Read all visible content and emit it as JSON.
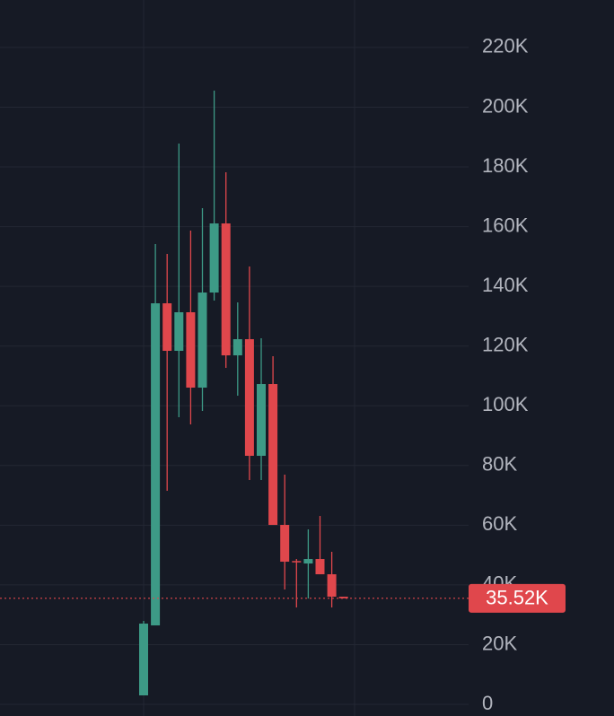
{
  "chart_data": {
    "type": "candlestick",
    "categories": [
      null,
      null,
      null,
      null,
      null,
      null,
      null,
      null,
      null,
      null,
      null,
      null,
      null,
      null,
      null,
      null,
      null,
      null
    ],
    "open": [
      3005,
      26444,
      134320,
      118400,
      131320,
      106080,
      137930,
      161070,
      116890,
      122300,
      83240,
      107280,
      60100,
      48000,
      47180,
      48680,
      43570,
      36060
    ],
    "high": [
      27950,
      154150,
      150850,
      187810,
      158660,
      166180,
      205540,
      178200,
      134620,
      146640,
      122600,
      116590,
      76930,
      48680,
      58600,
      63100,
      51090,
      36060
    ],
    "low": [
      3005,
      26444,
      71520,
      96160,
      93760,
      98260,
      135230,
      112690,
      103370,
      75130,
      75130,
      60100,
      38460,
      32450,
      35460,
      43570,
      32450,
      35520
    ],
    "close": [
      27045,
      134320,
      118400,
      131320,
      106080,
      137930,
      161070,
      116890,
      122300,
      83240,
      107280,
      60100,
      47780,
      47780,
      48680,
      43570,
      36060,
      35520
    ],
    "up_color": "#3d9a86",
    "down_color": "#e0474c",
    "ylim": [
      -3900,
      235900
    ],
    "yticks": [
      0,
      {
        "value": 20000,
        "label": "20K"
      },
      {
        "value": 40000,
        "label": "40K"
      },
      {
        "value": 60000,
        "label": "60K"
      },
      {
        "value": 80000,
        "label": "80K"
      },
      {
        "value": 100000,
        "label": "100K"
      },
      {
        "value": 120000,
        "label": "120K"
      },
      {
        "value": 140000,
        "label": "140K"
      },
      {
        "value": 160000,
        "label": "160K"
      },
      {
        "value": 180000,
        "label": "180K"
      },
      {
        "value": 200000,
        "label": "200K"
      },
      {
        "value": 220000,
        "label": "220K"
      }
    ],
    "grid": true,
    "last_price": {
      "value": 35520,
      "label": "35.52K"
    }
  }
}
